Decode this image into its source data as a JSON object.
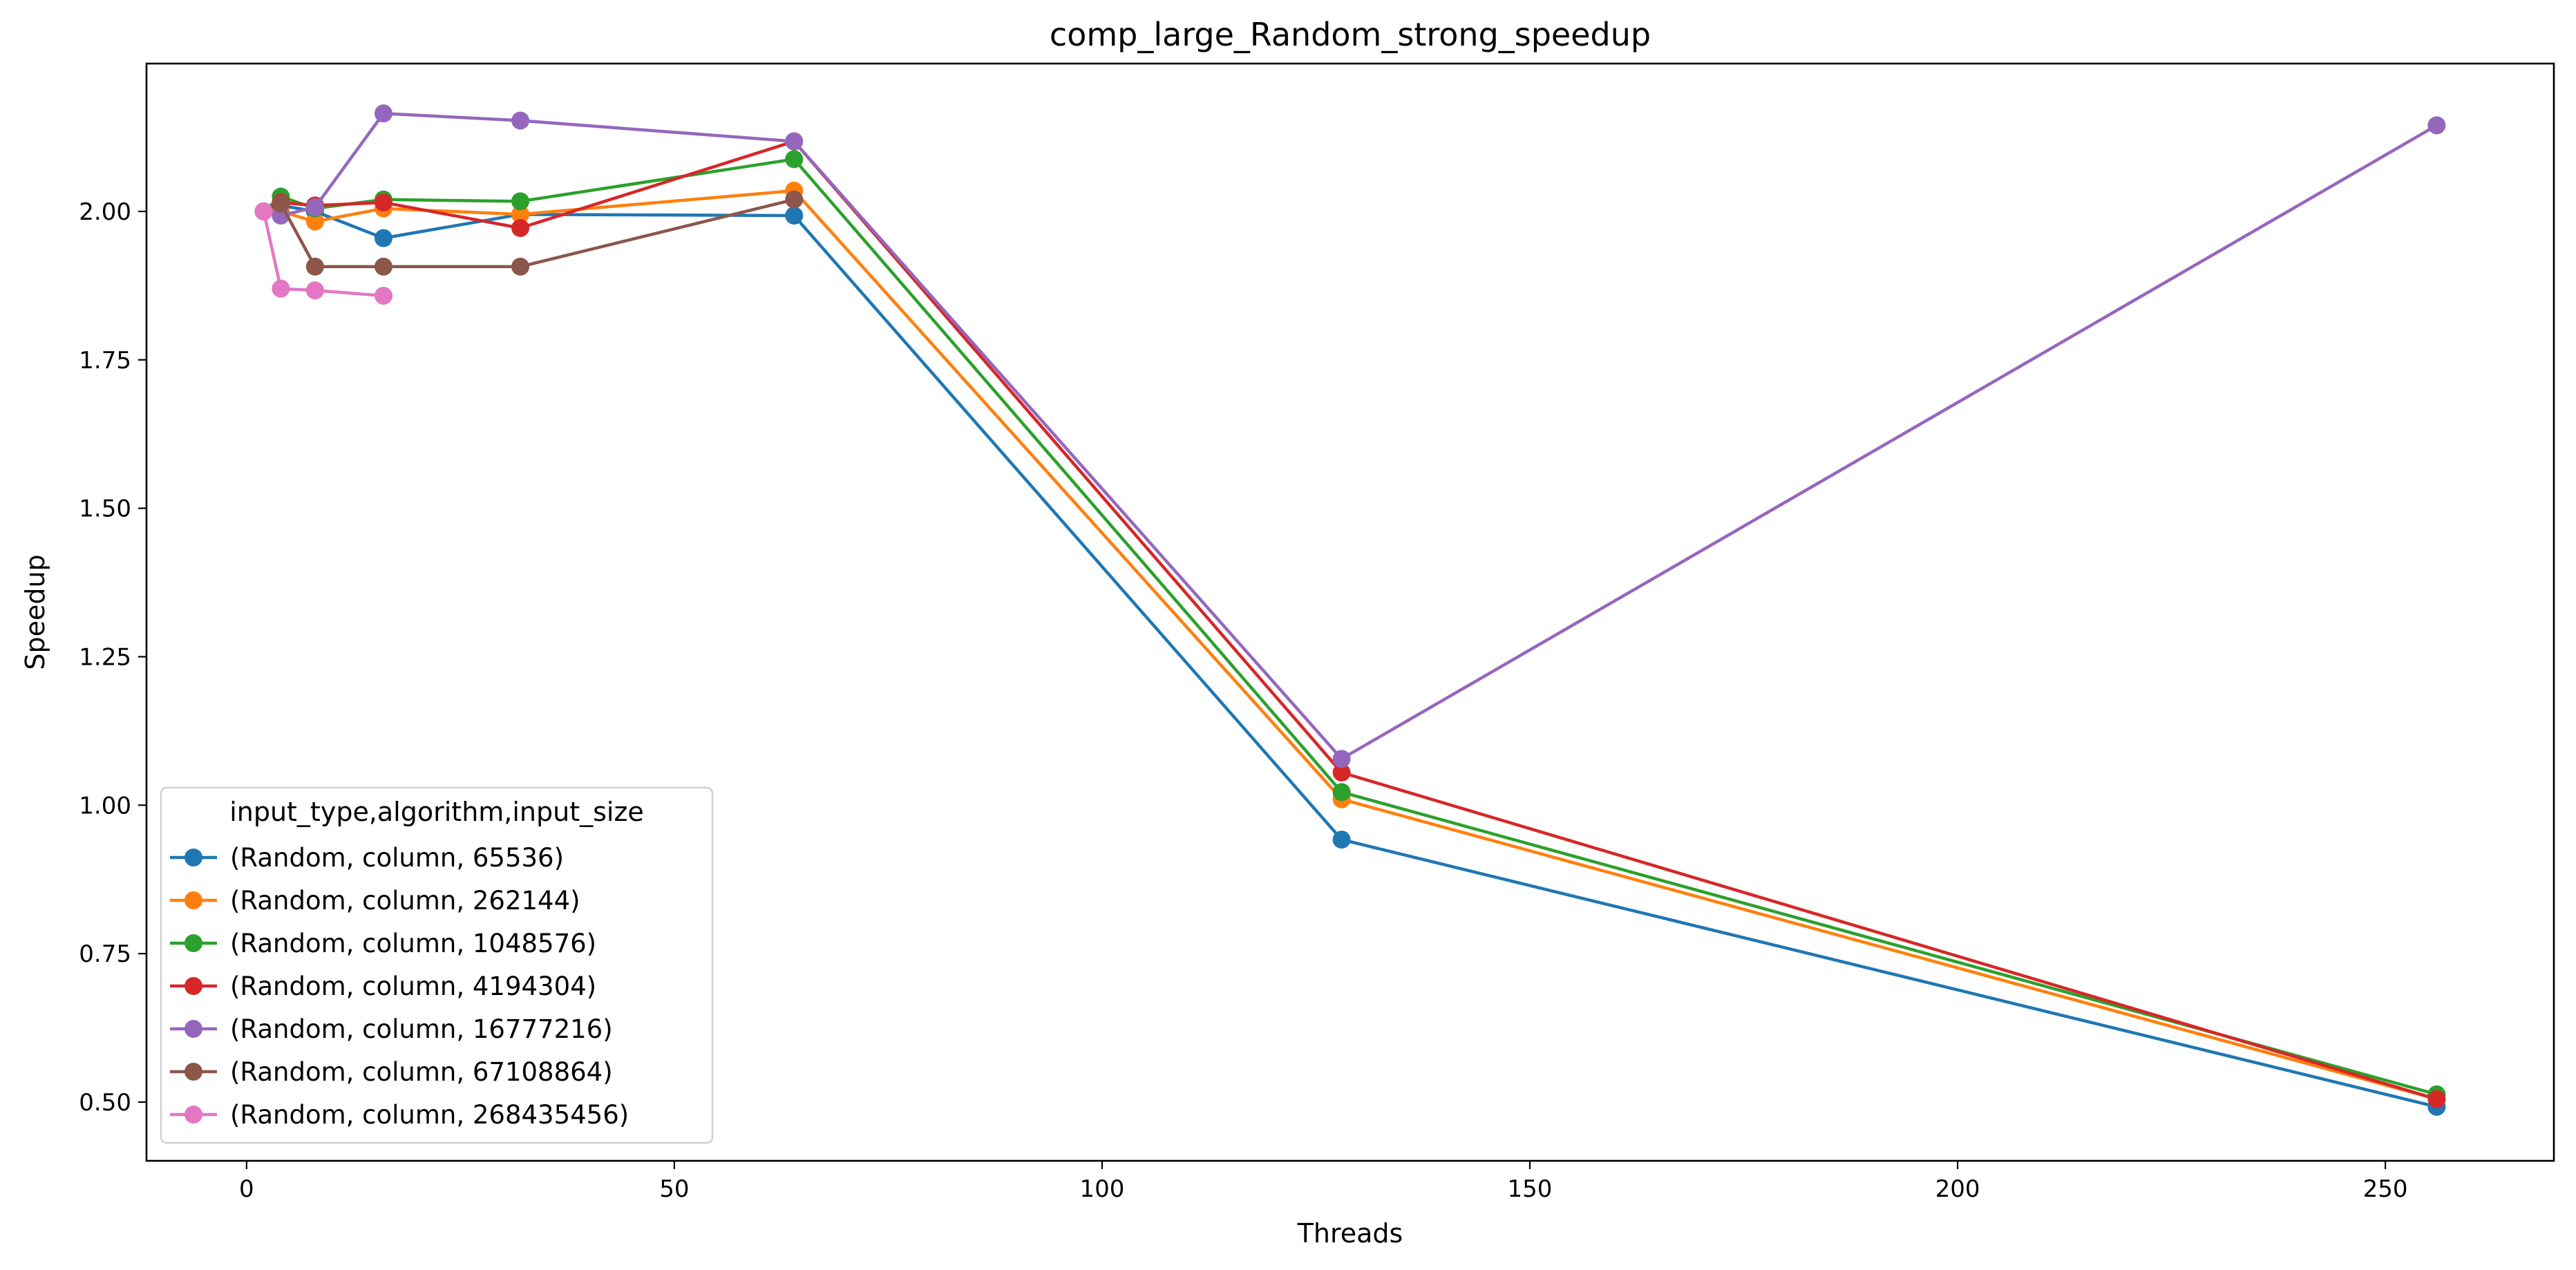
{
  "chart_data": {
    "type": "line",
    "title": "comp_large_Random_strong_speedup",
    "xlabel": "Threads",
    "ylabel": "Speedup",
    "xlim": [
      -11.7,
      269.7
    ],
    "ylim": [
      0.401,
      2.249
    ],
    "x_ticks": [
      0,
      50,
      100,
      150,
      200,
      250
    ],
    "x_tick_labels": [
      "0",
      "50",
      "100",
      "150",
      "200",
      "250"
    ],
    "y_ticks": [
      0.5,
      0.75,
      1.0,
      1.25,
      1.5,
      1.75,
      2.0
    ],
    "y_tick_labels": [
      "0.50",
      "0.75",
      "1.00",
      "1.25",
      "1.50",
      "1.75",
      "2.00"
    ],
    "grid": false,
    "legend": {
      "placement": "lower-left",
      "title": "input_type,algorithm,input_size"
    },
    "series": [
      {
        "name": "(Random, column, 65536)",
        "color": "#1f77b4",
        "x": [
          2,
          4,
          8,
          16,
          32,
          64,
          128,
          256
        ],
        "y": [
          2.0,
          2.01,
          2.0,
          1.955,
          1.995,
          1.993,
          0.942,
          0.492
        ]
      },
      {
        "name": "(Random, column, 262144)",
        "color": "#ff7f0e",
        "x": [
          2,
          4,
          8,
          16,
          32,
          64,
          128,
          256
        ],
        "y": [
          2.0,
          2.0,
          1.983,
          2.005,
          1.995,
          2.035,
          1.01,
          0.505
        ]
      },
      {
        "name": "(Random, column, 1048576)",
        "color": "#2ca02c",
        "x": [
          2,
          4,
          8,
          16,
          32,
          64,
          128,
          256
        ],
        "y": [
          2.0,
          2.025,
          2.005,
          2.02,
          2.017,
          2.088,
          1.022,
          0.513
        ]
      },
      {
        "name": "(Random, column, 4194304)",
        "color": "#d62728",
        "x": [
          2,
          4,
          8,
          16,
          32,
          64,
          128,
          256
        ],
        "y": [
          2.0,
          2.015,
          2.01,
          2.015,
          1.972,
          2.118,
          1.055,
          0.505
        ]
      },
      {
        "name": "(Random, column, 16777216)",
        "color": "#9467bd",
        "x": [
          2,
          4,
          8,
          16,
          32,
          64,
          128,
          256
        ],
        "y": [
          2.0,
          1.993,
          2.007,
          2.165,
          2.153,
          2.118,
          1.078,
          2.145
        ]
      },
      {
        "name": "(Random, column, 67108864)",
        "color": "#8c564b",
        "x": [
          2,
          4,
          8,
          16,
          32,
          64
        ],
        "y": [
          2.0,
          2.013,
          1.907,
          1.907,
          1.907,
          2.02
        ]
      },
      {
        "name": "(Random, column, 268435456)",
        "color": "#e377c2",
        "x": [
          2,
          4,
          8,
          16
        ],
        "y": [
          2.0,
          1.87,
          1.867,
          1.858
        ]
      }
    ]
  }
}
